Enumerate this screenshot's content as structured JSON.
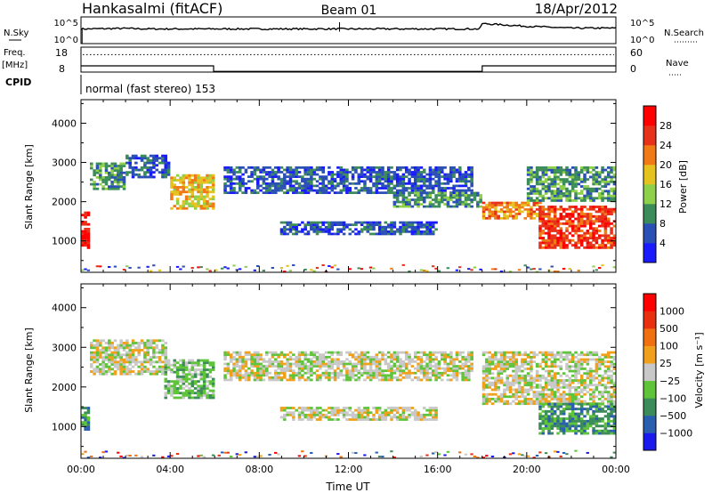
{
  "header": {
    "station": "Hankasalmi (fitACF)",
    "beam": "Beam 01",
    "date": "18/Apr/2012"
  },
  "chart_data": [
    {
      "type": "line",
      "panel": "noise",
      "left_label": "N.Sky",
      "right_label": "N.Search",
      "left_ticks": [
        "10^5",
        "10^0"
      ],
      "right_ticks": [
        "10^5",
        "10^0"
      ],
      "x_range": [
        0,
        24
      ],
      "series": [
        {
          "values_hours": [
            0,
            0.3,
            1,
            2,
            3,
            4,
            5,
            6,
            8,
            10,
            11.6,
            12,
            14,
            16,
            17.9,
            18,
            19,
            20,
            22,
            24
          ],
          "level": [
            0.55,
            0.55,
            0.56,
            0.57,
            0.55,
            0.55,
            0.55,
            0.55,
            0.55,
            0.55,
            0.55,
            0.55,
            0.55,
            0.55,
            0.55,
            0.75,
            0.7,
            0.65,
            0.58,
            0.58
          ]
        }
      ]
    },
    {
      "type": "line",
      "panel": "frequency-nave",
      "left_label_top": "Freq.",
      "left_label_bottom": "[MHz]",
      "right_label": "Nave",
      "left_ticks": [
        "18",
        "8"
      ],
      "right_ticks": [
        "60",
        "0"
      ],
      "x_range": [
        0,
        24
      ],
      "freq_step": [
        [
          0,
          10.5
        ],
        [
          5.95,
          10.5
        ],
        [
          5.95,
          8.3
        ],
        [
          18,
          8.3
        ],
        [
          18,
          10.5
        ],
        [
          24,
          10.5
        ]
      ],
      "nave_level": 42
    },
    {
      "type": "table",
      "panel": "cpid",
      "label": "CPID",
      "value": "normal (fast stereo) 153"
    },
    {
      "type": "heatmap",
      "panel": "power",
      "ylabel": "Slant Range [km]",
      "y_ticks": [
        1000,
        2000,
        3000,
        4000
      ],
      "ylim": [
        200,
        4600
      ],
      "x_range": [
        0,
        24
      ],
      "colorbar_label": "Power [dB]",
      "colorbar_ticks": [
        "4",
        "8",
        "12",
        "16",
        "20",
        "24",
        "28"
      ],
      "colors": [
        "#1a1aff",
        "#2a4fb5",
        "#3c8c5a",
        "#8fd04a",
        "#e6c21e",
        "#f07a16",
        "#e8311a",
        "#ff0000"
      ],
      "echo_regions": [
        {
          "t0": 0.0,
          "t1": 0.4,
          "r0": 800,
          "r1": 1750,
          "level": 7
        },
        {
          "t0": 0.5,
          "t1": 2.0,
          "r0": 2300,
          "r1": 3000,
          "level": 2
        },
        {
          "t0": 2.0,
          "t1": 4.0,
          "r0": 2600,
          "r1": 3200,
          "level": 1
        },
        {
          "t0": 4.0,
          "t1": 6.0,
          "r0": 1800,
          "r1": 2700,
          "level": 4
        },
        {
          "t0": 6.5,
          "t1": 17.5,
          "r0": 2200,
          "r1": 2900,
          "level": 1
        },
        {
          "t0": 9.0,
          "t1": 16.0,
          "r0": 1150,
          "r1": 1500,
          "level": 1
        },
        {
          "t0": 14.0,
          "t1": 18.0,
          "r0": 1850,
          "r1": 2250,
          "level": 2
        },
        {
          "t0": 18.0,
          "t1": 20.6,
          "r0": 1550,
          "r1": 2000,
          "level": 5
        },
        {
          "t0": 20.6,
          "t1": 23.9,
          "r0": 800,
          "r1": 1900,
          "level": 6
        },
        {
          "t0": 20.0,
          "t1": 23.9,
          "r0": 2000,
          "r1": 2900,
          "level": 2
        }
      ]
    },
    {
      "type": "heatmap",
      "panel": "velocity",
      "ylabel": "Slant Range [km]",
      "y_ticks": [
        1000,
        2000,
        3000,
        4000
      ],
      "ylim": [
        200,
        4600
      ],
      "x_range": [
        0,
        24
      ],
      "xlabel": "Time UT",
      "x_ticks": [
        "00:00",
        "04:00",
        "08:00",
        "12:00",
        "16:00",
        "20:00",
        "00:00"
      ],
      "colorbar_label": "Velocity  [m s⁻¹]",
      "colorbar_ticks": [
        "1000",
        "500",
        "100",
        "25",
        "−25",
        "−100",
        "−500",
        "−1000"
      ],
      "colors": [
        "#1a1aee",
        "#2a5fb0",
        "#3c8c5a",
        "#5fc43a",
        "#c8c8c8",
        "#f0a01a",
        "#f07010",
        "#e83010",
        "#ff0000"
      ],
      "echo_regions": [
        {
          "t0": 0.0,
          "t1": 0.4,
          "r0": 900,
          "r1": 1500,
          "level": 2
        },
        {
          "t0": 0.4,
          "t1": 3.8,
          "r0": 2300,
          "r1": 3200,
          "level": 4
        },
        {
          "t0": 3.8,
          "t1": 6.0,
          "r0": 1700,
          "r1": 2700,
          "level": 3
        },
        {
          "t0": 6.5,
          "t1": 17.5,
          "r0": 2150,
          "r1": 2900,
          "level": 4
        },
        {
          "t0": 9.0,
          "t1": 16.0,
          "r0": 1150,
          "r1": 1500,
          "level": 4
        },
        {
          "t0": 18.0,
          "t1": 23.9,
          "r0": 1550,
          "r1": 2900,
          "level": 4
        },
        {
          "t0": 20.6,
          "t1": 23.9,
          "r0": 800,
          "r1": 1600,
          "level": 2
        }
      ]
    }
  ]
}
